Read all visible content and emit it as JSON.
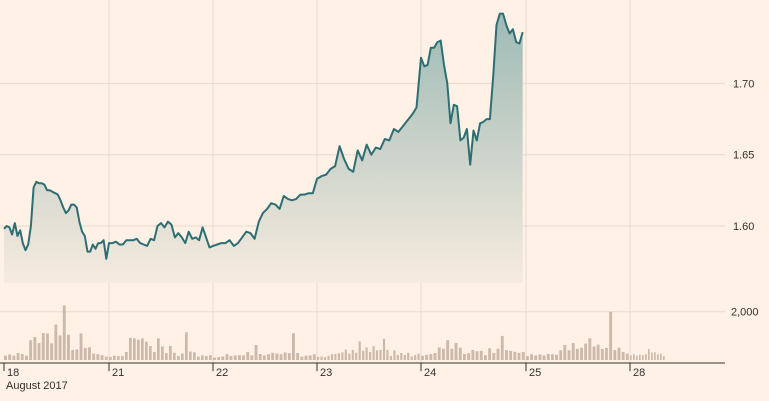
{
  "chart_data": {
    "type": "area",
    "x_caption": "August 2017",
    "colors": {
      "line": "#2e6e73",
      "fill_top": "#9dbab5",
      "fill_bottom": "#f7ebdf",
      "volume": "#cdb9aa",
      "grid": "#e6d9ce",
      "text": "#33302e"
    },
    "price_axis": {
      "ticks": [
        "1.60",
        "1.65",
        "1.70"
      ],
      "ylim": [
        1.56,
        1.755
      ]
    },
    "volume_axis": {
      "ticks": [
        "2,000"
      ],
      "ylim": [
        0,
        2900
      ]
    },
    "days": [
      "18",
      "21",
      "22",
      "23",
      "24",
      "25",
      "28"
    ],
    "series": [
      {
        "values": [
          [
            1.598,
            1.6,
            1.599,
            1.594,
            1.602,
            1.593,
            1.597,
            1.588,
            1.583,
            1.587,
            1.6,
            1.627,
            1.631,
            1.63,
            1.63,
            1.629,
            1.625,
            1.625,
            1.624,
            1.623,
            1.622,
            1.618,
            1.613,
            1.609,
            1.611,
            1.615,
            1.615,
            1.613,
            1.603,
            1.596,
            1.593,
            1.582,
            1.582,
            1.587,
            1.584,
            1.588,
            1.588,
            1.59,
            1.577
          ],
          [
            1.588,
            1.588,
            1.589,
            1.587,
            1.587,
            1.59,
            1.59,
            1.59,
            1.591,
            1.588,
            1.587,
            1.586,
            1.591,
            1.59,
            1.6,
            1.602,
            1.599,
            1.603,
            1.601,
            1.592,
            1.595,
            1.592,
            1.588,
            1.596,
            1.591,
            1.592,
            1.59,
            1.599,
            1.592,
            1.585
          ],
          [
            1.586,
            1.587,
            1.588,
            1.588,
            1.59,
            1.586,
            1.588,
            1.592,
            1.596,
            1.595,
            1.591,
            1.603,
            1.609,
            1.612,
            1.616,
            1.615,
            1.612,
            1.621,
            1.619,
            1.618,
            1.619,
            1.622,
            1.622,
            1.623,
            1.623
          ],
          [
            1.633,
            1.635,
            1.636,
            1.64,
            1.642,
            1.656,
            1.647,
            1.64,
            1.638,
            1.653,
            1.646,
            1.657,
            1.65,
            1.655,
            1.654,
            1.661,
            1.66,
            1.668,
            1.666,
            1.67,
            1.674,
            1.678,
            1.683
          ],
          [
            1.718,
            1.712,
            1.713,
            1.725,
            1.725,
            1.729,
            1.73,
            1.713,
            1.7,
            1.672,
            1.685,
            1.684,
            1.66,
            1.662,
            1.668,
            1.643,
            1.667,
            1.66,
            1.672,
            1.673,
            1.675,
            1.675,
            1.705,
            1.741,
            1.749,
            1.749,
            1.741,
            1.735,
            1.738,
            1.729,
            1.728,
            1.736
          ]
        ]
      }
    ],
    "volumes": [
      [
        180,
        230,
        180,
        290,
        250,
        180,
        820,
        950,
        700,
        1120,
        1100,
        690,
        1470,
        1020,
        2260,
        1050,
        420,
        440,
        1100,
        500,
        530,
        260,
        240,
        200,
        140
      ],
      [
        130,
        180,
        160,
        160,
        330,
        920,
        900,
        840,
        900,
        760,
        580,
        330,
        900,
        560,
        280,
        580,
        300,
        170,
        270,
        1150,
        350,
        320,
        140,
        190,
        170,
        200
      ],
      [
        100,
        120,
        140,
        240,
        160,
        190,
        200,
        190,
        330,
        190,
        620,
        250,
        190,
        240,
        300,
        270,
        240,
        310,
        280,
        1110,
        290,
        140,
        180,
        190,
        230
      ],
      [
        130,
        140,
        120,
        170,
        240,
        250,
        280,
        310,
        430,
        260,
        420,
        300,
        770,
        380,
        520,
        330,
        580,
        400,
        420,
        880,
        420,
        170,
        400,
        210,
        290,
        210,
        300,
        150,
        200,
        260
      ],
      [
        180,
        220,
        250,
        290,
        520,
        460,
        820,
        470,
        700,
        510,
        250,
        280,
        420,
        360,
        380,
        200,
        490,
        290,
        470,
        1000,
        410,
        380,
        340,
        300,
        330
      ],
      [
        160,
        240,
        190,
        230,
        190,
        250,
        230,
        220,
        400,
        620,
        400,
        700,
        460,
        510,
        680,
        900,
        560,
        640,
        460,
        500,
        2000,
        410,
        510,
        330,
        260
      ],
      [
        200,
        240,
        180,
        220,
        200,
        250,
        450,
        310,
        320,
        230,
        260,
        160
      ]
    ]
  }
}
